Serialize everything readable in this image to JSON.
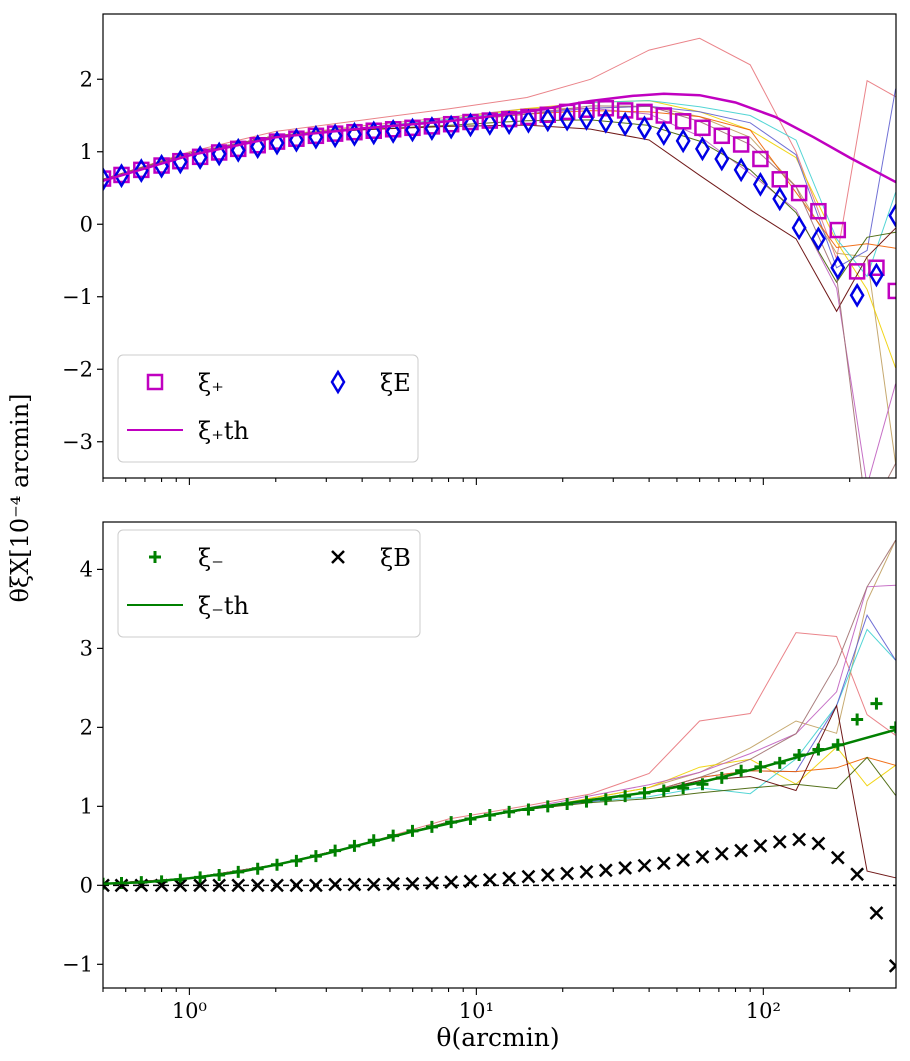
{
  "figure": {
    "ylabel": "θξX[10⁻⁴ arcmin]",
    "xlabel": "θ(arcmin)"
  },
  "colors": {
    "xi_plus": "#c000c0",
    "xi_E": "#0000e6",
    "xi_minus": "#008000",
    "xi_B": "#000000",
    "realizations": [
      "#e8767c",
      "#c0a060",
      "#f0d000",
      "#40d0d0",
      "#6060d0",
      "#c060c0",
      "#f06000",
      "#406000",
      "#600000",
      "#a07070"
    ]
  },
  "chart_data": [
    {
      "type": "scatter",
      "panel": "top",
      "xscale": "log",
      "xlim": [
        0.5,
        290
      ],
      "ylim": [
        -3.5,
        2.9
      ],
      "yticks": [
        -3,
        -2,
        -1,
        0,
        1,
        2
      ],
      "ytick_labels": [
        "−3",
        "−2",
        "−1",
        "0",
        "1",
        "2"
      ],
      "legend": {
        "position": "lower-left",
        "entries": [
          {
            "key": "xi_plus",
            "label": "ξ₊",
            "marker": "square"
          },
          {
            "key": "xi_E",
            "label": "ξE",
            "marker": "diamond"
          },
          {
            "key": "xi_plus_th",
            "label": "ξ₊th",
            "marker": "line"
          }
        ]
      },
      "series": [
        {
          "name": "ξ+",
          "marker": "square",
          "x": [
            0.5,
            0.58,
            0.68,
            0.8,
            0.93,
            1.09,
            1.27,
            1.48,
            1.73,
            2.02,
            2.36,
            2.76,
            3.22,
            3.76,
            4.39,
            5.13,
            5.99,
            7.0,
            8.17,
            9.54,
            11.14,
            13.01,
            15.19,
            17.74,
            20.72,
            24.2,
            28.26,
            33.0,
            38.54,
            45.0,
            52.56,
            61.37,
            71.67,
            83.7,
            97.7,
            114.1,
            133.3,
            155.6,
            181.8,
            212.3,
            247.9,
            289.5
          ],
          "values": [
            0.63,
            0.68,
            0.75,
            0.81,
            0.87,
            0.93,
            0.99,
            1.04,
            1.09,
            1.14,
            1.18,
            1.22,
            1.25,
            1.27,
            1.29,
            1.31,
            1.33,
            1.35,
            1.38,
            1.41,
            1.43,
            1.45,
            1.48,
            1.51,
            1.55,
            1.58,
            1.6,
            1.57,
            1.55,
            1.5,
            1.42,
            1.33,
            1.22,
            1.1,
            0.9,
            0.62,
            0.43,
            0.18,
            -0.08,
            -0.65,
            -0.6,
            -0.92
          ]
        },
        {
          "name": "ξE",
          "marker": "diamond",
          "x": [
            0.5,
            0.58,
            0.68,
            0.8,
            0.93,
            1.09,
            1.27,
            1.48,
            1.73,
            2.02,
            2.36,
            2.76,
            3.22,
            3.76,
            4.39,
            5.13,
            5.99,
            7.0,
            8.17,
            9.54,
            11.14,
            13.01,
            15.19,
            17.74,
            20.72,
            24.2,
            28.26,
            33.0,
            38.54,
            45.0,
            52.56,
            61.37,
            71.67,
            83.7,
            97.7,
            114.1,
            133.3,
            155.6,
            181.8,
            212.3,
            247.9,
            289.5
          ],
          "values": [
            0.62,
            0.67,
            0.74,
            0.8,
            0.86,
            0.92,
            0.97,
            1.02,
            1.07,
            1.12,
            1.16,
            1.2,
            1.22,
            1.24,
            1.26,
            1.28,
            1.3,
            1.32,
            1.34,
            1.37,
            1.39,
            1.4,
            1.42,
            1.44,
            1.45,
            1.46,
            1.42,
            1.38,
            1.33,
            1.25,
            1.15,
            1.04,
            0.9,
            0.75,
            0.55,
            0.35,
            -0.05,
            -0.2,
            -0.6,
            -0.98,
            -0.7,
            0.12
          ]
        },
        {
          "name": "ξ+th",
          "marker": "line",
          "x": [
            0.5,
            1,
            2,
            4,
            8,
            15,
            25,
            35,
            45,
            60,
            80,
            110,
            150,
            200,
            290
          ],
          "values": [
            0.6,
            0.95,
            1.2,
            1.32,
            1.42,
            1.55,
            1.7,
            1.77,
            1.8,
            1.78,
            1.68,
            1.48,
            1.2,
            0.92,
            0.58
          ]
        }
      ]
    },
    {
      "type": "scatter",
      "panel": "bottom",
      "xscale": "log",
      "xlim": [
        0.5,
        290
      ],
      "ylim": [
        -1.3,
        4.6
      ],
      "yticks": [
        -1,
        0,
        1,
        2,
        3,
        4
      ],
      "ytick_labels": [
        "−1",
        "0",
        "1",
        "2",
        "3",
        "4"
      ],
      "xticks": [
        1,
        10,
        100
      ],
      "xtick_labels": [
        "10⁰",
        "10¹",
        "10²"
      ],
      "hline": 0,
      "legend": {
        "position": "upper-left",
        "entries": [
          {
            "key": "xi_minus",
            "label": "ξ₋",
            "marker": "plus"
          },
          {
            "key": "xi_B",
            "label": "ξB",
            "marker": "x"
          },
          {
            "key": "xi_minus_th",
            "label": "ξ₋th",
            "marker": "line"
          }
        ]
      },
      "series": [
        {
          "name": "ξ−",
          "marker": "plus",
          "x": [
            0.5,
            0.58,
            0.68,
            0.8,
            0.93,
            1.09,
            1.27,
            1.48,
            1.73,
            2.02,
            2.36,
            2.76,
            3.22,
            3.76,
            4.39,
            5.13,
            5.99,
            7.0,
            8.17,
            9.54,
            11.14,
            13.01,
            15.19,
            17.74,
            20.72,
            24.2,
            28.26,
            33.0,
            38.54,
            45.0,
            52.56,
            61.37,
            71.67,
            83.7,
            97.7,
            114.1,
            133.3,
            155.6,
            181.8,
            212.3,
            247.9,
            289.5
          ],
          "values": [
            0.02,
            0.03,
            0.04,
            0.05,
            0.07,
            0.1,
            0.13,
            0.17,
            0.21,
            0.26,
            0.31,
            0.37,
            0.44,
            0.5,
            0.57,
            0.63,
            0.69,
            0.74,
            0.8,
            0.84,
            0.89,
            0.93,
            0.96,
            1.0,
            1.03,
            1.06,
            1.09,
            1.13,
            1.17,
            1.2,
            1.23,
            1.28,
            1.36,
            1.45,
            1.5,
            1.55,
            1.65,
            1.72,
            1.78,
            2.1,
            2.3,
            2.0
          ]
        },
        {
          "name": "ξB",
          "marker": "x",
          "x": [
            0.5,
            0.58,
            0.68,
            0.8,
            0.93,
            1.09,
            1.27,
            1.48,
            1.73,
            2.02,
            2.36,
            2.76,
            3.22,
            3.76,
            4.39,
            5.13,
            5.99,
            7.0,
            8.17,
            9.54,
            11.14,
            13.01,
            15.19,
            17.74,
            20.72,
            24.2,
            28.26,
            33.0,
            38.54,
            45.0,
            52.56,
            61.37,
            71.67,
            83.7,
            97.7,
            114.1,
            133.3,
            155.6,
            181.8,
            212.3,
            247.9,
            289.5
          ],
          "values": [
            0.0,
            0.0,
            0.0,
            0.0,
            0.0,
            0.0,
            0.0,
            0.0,
            0.0,
            0.0,
            0.0,
            0.0,
            0.01,
            0.01,
            0.01,
            0.02,
            0.02,
            0.03,
            0.04,
            0.05,
            0.07,
            0.09,
            0.11,
            0.13,
            0.15,
            0.17,
            0.19,
            0.22,
            0.25,
            0.28,
            0.32,
            0.36,
            0.4,
            0.44,
            0.5,
            0.55,
            0.58,
            0.53,
            0.35,
            0.14,
            -0.35,
            -1.02
          ]
        },
        {
          "name": "ξ−th",
          "marker": "line",
          "x": [
            0.5,
            0.7,
            1,
            1.5,
            2,
            3,
            4,
            6,
            10,
            15,
            25,
            40,
            60,
            100,
            150,
            220,
            290
          ],
          "values": [
            0.02,
            0.04,
            0.09,
            0.17,
            0.26,
            0.4,
            0.52,
            0.68,
            0.86,
            0.97,
            1.08,
            1.18,
            1.3,
            1.5,
            1.68,
            1.85,
            1.97
          ]
        }
      ]
    }
  ]
}
